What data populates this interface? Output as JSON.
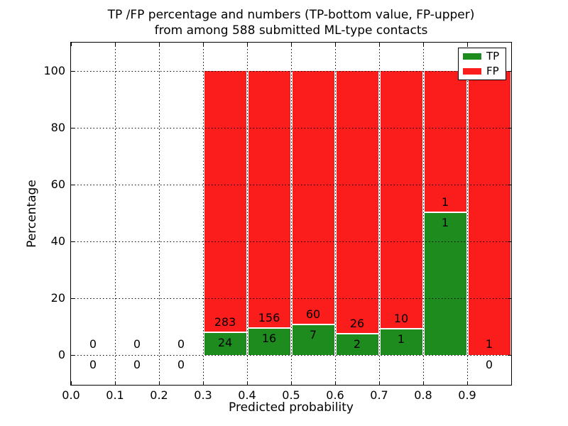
{
  "chart_data": {
    "type": "bar",
    "stacked": true,
    "title_lines": [
      "TP /FP percentage and numbers (TP-bottom value, FP-upper)",
      "from among 588 submitted ML-type contacts"
    ],
    "xlabel": "Predicted probability",
    "ylabel": "Percentage",
    "xlim": [
      0.0,
      1.0
    ],
    "ylim": [
      -10.5,
      110
    ],
    "bin_width": 0.1,
    "x_tick_labels": [
      "0.0",
      "0.1",
      "0.2",
      "0.3",
      "0.4",
      "0.5",
      "0.6",
      "0.7",
      "0.8",
      "0.9"
    ],
    "y_ticks": [
      {
        "value": 0,
        "label": "0"
      },
      {
        "value": 20,
        "label": "20"
      },
      {
        "value": 40,
        "label": "40"
      },
      {
        "value": 60,
        "label": "60"
      },
      {
        "value": 80,
        "label": "80"
      },
      {
        "value": 100,
        "label": "100"
      }
    ],
    "grid": true,
    "grid_style": "dotted",
    "legend": {
      "position": "upper right",
      "entries": [
        {
          "label": "TP",
          "color": "#1e8b1e"
        },
        {
          "label": "FP",
          "color": "#fb1c1c"
        }
      ]
    },
    "bins": [
      {
        "x_start": 0.0,
        "tp": 0,
        "fp": 0
      },
      {
        "x_start": 0.1,
        "tp": 0,
        "fp": 0
      },
      {
        "x_start": 0.2,
        "tp": 0,
        "fp": 0
      },
      {
        "x_start": 0.3,
        "tp": 24,
        "fp": 283
      },
      {
        "x_start": 0.4,
        "tp": 16,
        "fp": 156
      },
      {
        "x_start": 0.5,
        "tp": 7,
        "fp": 60
      },
      {
        "x_start": 0.6,
        "tp": 2,
        "fp": 26
      },
      {
        "x_start": 0.7,
        "tp": 1,
        "fp": 10
      },
      {
        "x_start": 0.8,
        "tp": 1,
        "fp": 1
      },
      {
        "x_start": 0.9,
        "tp": 0,
        "fp": 1
      }
    ],
    "colors": {
      "tp": "#1e8b1e",
      "fp": "#fb1c1c",
      "grid": "#000000",
      "frame": "#000000",
      "text": "#000000",
      "background": "#ffffff"
    }
  }
}
